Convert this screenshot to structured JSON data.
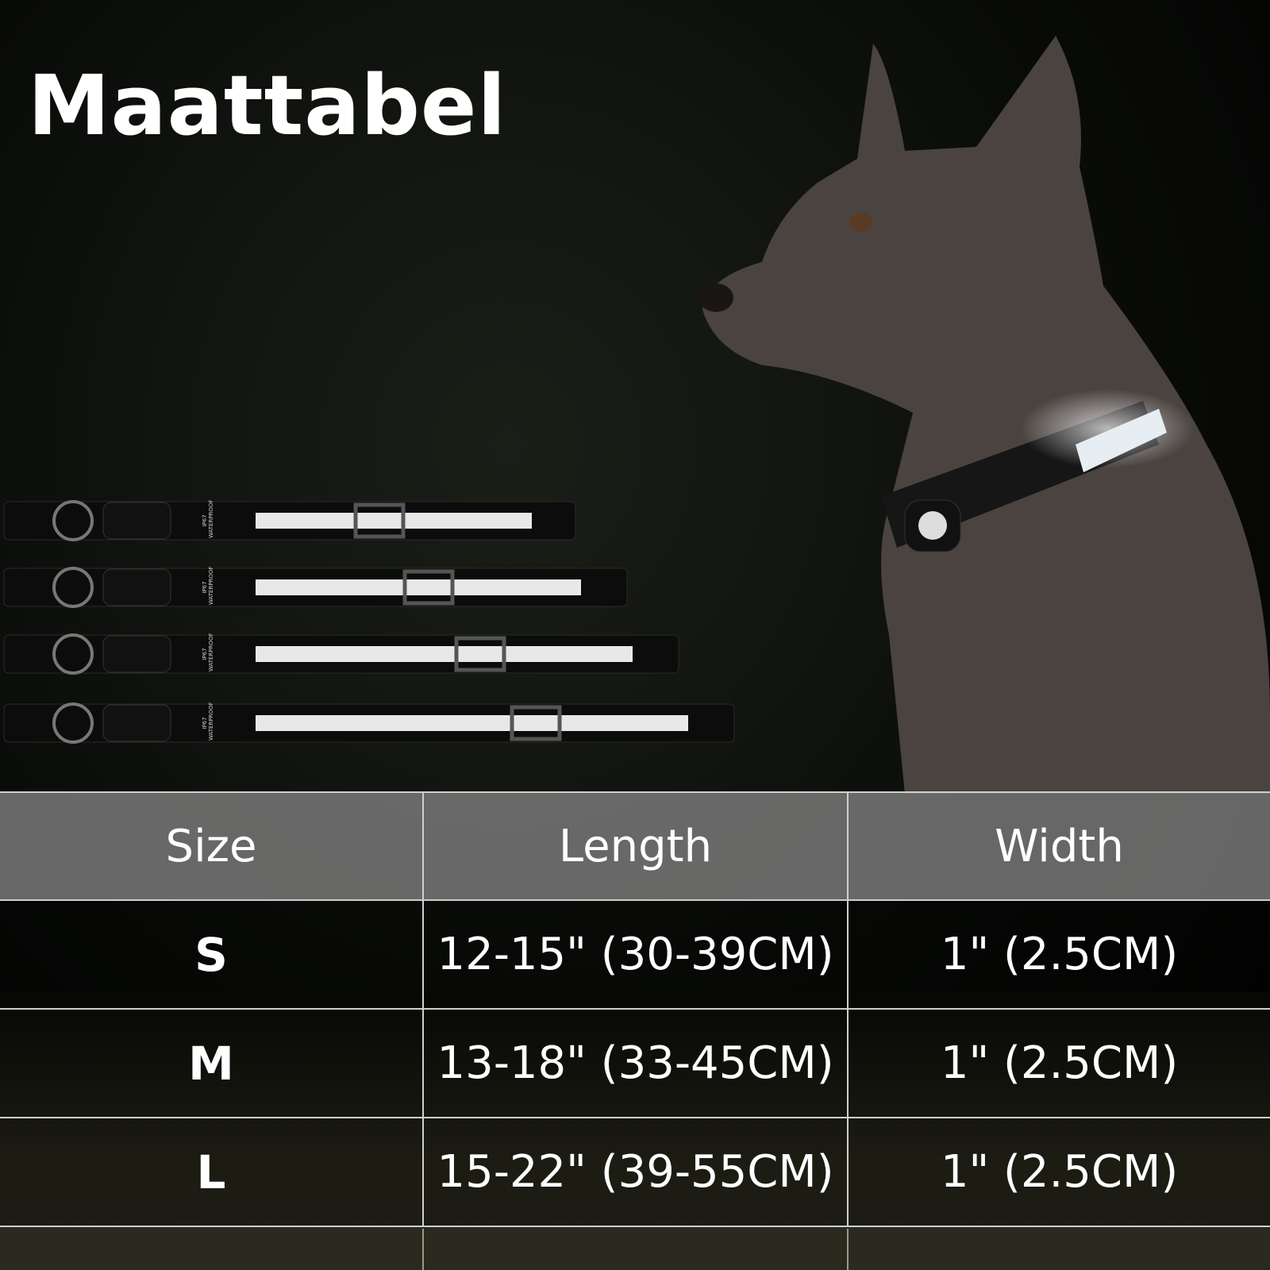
{
  "title": "Maattabel",
  "table": {
    "headers": [
      "Size",
      "Length",
      "Width"
    ],
    "rows": [
      {
        "size": "S",
        "length": "12-15\"  (30-39CM)",
        "width": "1\"  (2.5CM)"
      },
      {
        "size": "M",
        "length": "13-18\"  (33-45CM)",
        "width": "1\"  (2.5CM)"
      },
      {
        "size": "L",
        "length": "15-22\"  (39-55CM)",
        "width": "1\"  (2.5CM)"
      }
    ]
  },
  "product_label": "IP67 WATERPROOF",
  "colors": {
    "header_bg": "#787878",
    "background": "#000000",
    "text": "#ffffff",
    "reflective_strip": "#e8e8e8"
  }
}
